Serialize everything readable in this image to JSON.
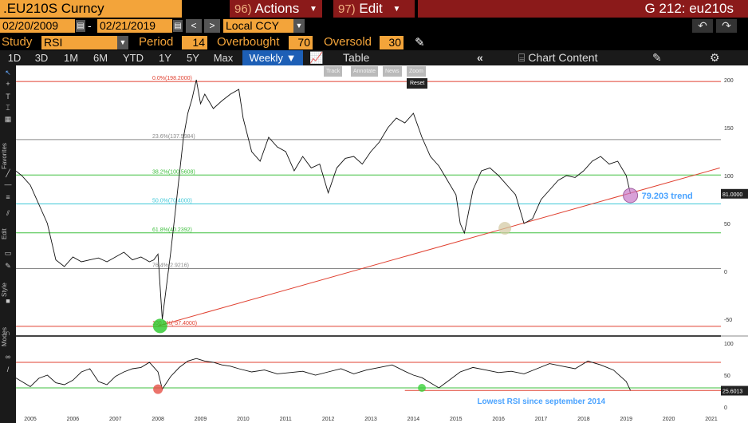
{
  "header": {
    "ticker": ".EU210S Curncy",
    "actions_num": "96)",
    "actions_label": "Actions",
    "edit_num": "97)",
    "edit_label": "Edit",
    "graph_title": "G 212: eu210s"
  },
  "range": {
    "start_date": "02/20/2009",
    "end_date": "02/21/2019",
    "currency": "Local CCY"
  },
  "study": {
    "study_label": "Study",
    "study_value": "RSI",
    "period_label": "Period",
    "period_value": "14",
    "overbought_label": "Overbought",
    "overbought_value": "70",
    "oversold_label": "Oversold",
    "oversold_value": "30"
  },
  "periods": [
    "1D",
    "3D",
    "1M",
    "6M",
    "YTD",
    "1Y",
    "5Y",
    "Max"
  ],
  "frequency": "Weekly",
  "toolbar": {
    "table_label": "Table",
    "chart_content_label": "Chart Content"
  },
  "overlay_tools": {
    "track": "Track",
    "annotate": "Annotate",
    "news": "News",
    "zoom": "Zoom",
    "reset": "Reset"
  },
  "sidebar_labels": {
    "favorites": "Favorites",
    "edit": "Edit",
    "style": "Style",
    "modes": "Modes"
  },
  "colors": {
    "accent": "#f3a43a",
    "header_red": "#8b1a1a",
    "active_blue": "#1d5fb6",
    "trend_red": "#e04030",
    "fib_green": "#3fbf3f",
    "fib_cyan": "#40c8d8"
  },
  "chart_data": [
    {
      "type": "line",
      "title": "",
      "y_axis_ticks": [
        200,
        150,
        100,
        50,
        0,
        -50
      ],
      "ylim": [
        -60,
        210
      ],
      "last_value": "81.0000",
      "x_ticks": [
        "2005",
        "2006",
        "2007",
        "2008",
        "2009",
        "2010",
        "2011",
        "2012",
        "2013",
        "2014",
        "2015",
        "2016",
        "2017",
        "2018",
        "2019",
        "2020",
        "2021"
      ],
      "series": [
        {
          "x": [
            2004.6,
            2004.8,
            2005.0,
            2005.2,
            2005.4,
            2005.6,
            2005.8,
            2006.0,
            2006.2,
            2006.4,
            2006.6,
            2006.8,
            2007.0,
            2007.2,
            2007.4,
            2007.6,
            2007.8,
            2007.9,
            2008.0,
            2008.1,
            2008.2,
            2008.3,
            2008.4,
            2008.5,
            2008.6,
            2008.7,
            2008.8,
            2008.9,
            2009.0,
            2009.1,
            2009.3,
            2009.5,
            2009.7,
            2009.9,
            2010.0,
            2010.2,
            2010.4,
            2010.6,
            2010.8,
            2011.0,
            2011.2,
            2011.4,
            2011.6,
            2011.8,
            2012.0,
            2012.2,
            2012.4,
            2012.6,
            2012.8,
            2013.0,
            2013.2,
            2013.4,
            2013.6,
            2013.8,
            2014.0,
            2014.2,
            2014.4,
            2014.6,
            2014.8,
            2015.0,
            2015.1,
            2015.2,
            2015.4,
            2015.6,
            2015.8,
            2016.0,
            2016.2,
            2016.4,
            2016.6,
            2016.8,
            2017.0,
            2017.2,
            2017.4,
            2017.6,
            2017.8,
            2018.0,
            2018.2,
            2018.4,
            2018.6,
            2018.8,
            2019.0,
            2019.1
          ],
          "y": [
            107,
            100,
            90,
            70,
            50,
            12,
            5,
            15,
            10,
            12,
            14,
            10,
            15,
            20,
            12,
            15,
            10,
            12,
            18,
            -50,
            -15,
            20,
            60,
            100,
            140,
            165,
            180,
            200,
            175,
            185,
            170,
            178,
            185,
            190,
            160,
            125,
            115,
            140,
            130,
            125,
            105,
            120,
            108,
            112,
            82,
            108,
            118,
            120,
            112,
            125,
            135,
            150,
            160,
            155,
            165,
            140,
            120,
            110,
            95,
            80,
            50,
            40,
            85,
            105,
            108,
            100,
            90,
            80,
            50,
            55,
            75,
            85,
            95,
            100,
            98,
            105,
            115,
            120,
            112,
            115,
            100,
            81
          ],
          "name": ""
        }
      ],
      "fib_levels": [
        {
          "label": "0.0%(198.2000)",
          "value": 198.2,
          "color": "#e04030"
        },
        {
          "label": "23.6%(137.5984)",
          "value": 137.6,
          "color": "#888888"
        },
        {
          "label": "38.2%(100.5608)",
          "value": 100.6,
          "color": "#3fbf3f"
        },
        {
          "label": "50.0%(70.4000)",
          "value": 70.4,
          "color": "#40c8d8"
        },
        {
          "label": "61.8%(40.2392)",
          "value": 40.2,
          "color": "#3fbf3f"
        },
        {
          "label": "76.4%(2.9216)",
          "value": 2.9,
          "color": "#888888"
        },
        {
          "label": "100.0%(-57.4000)",
          "value": -57.4,
          "color": "#e04030"
        }
      ],
      "trendline": {
        "from": [
          2008.0,
          -57
        ],
        "to": [
          2021.2,
          108
        ]
      },
      "annotation": "79.203 trend"
    },
    {
      "type": "line",
      "title": "",
      "y_axis_ticks": [
        100,
        50,
        0
      ],
      "ylim": [
        0,
        110
      ],
      "overbought": 70,
      "oversold": 30,
      "last_value": "25.6013",
      "series": [
        {
          "x": [
            2004.6,
            2004.8,
            2005.0,
            2005.2,
            2005.4,
            2005.6,
            2005.8,
            2006.0,
            2006.2,
            2006.4,
            2006.6,
            2006.8,
            2007.0,
            2007.2,
            2007.4,
            2007.6,
            2007.8,
            2008.0,
            2008.1,
            2008.3,
            2008.5,
            2008.7,
            2008.9,
            2009.1,
            2009.3,
            2009.5,
            2009.7,
            2009.9,
            2010.2,
            2010.5,
            2010.8,
            2011.1,
            2011.4,
            2011.7,
            2012.0,
            2012.3,
            2012.6,
            2012.9,
            2013.2,
            2013.5,
            2013.8,
            2014.0,
            2014.2,
            2014.4,
            2014.6,
            2014.8,
            2015.1,
            2015.4,
            2015.7,
            2016.0,
            2016.3,
            2016.6,
            2016.9,
            2017.2,
            2017.5,
            2017.8,
            2018.1,
            2018.4,
            2018.7,
            2019.0,
            2019.1
          ],
          "y": [
            48,
            40,
            32,
            45,
            50,
            38,
            35,
            42,
            55,
            60,
            40,
            35,
            48,
            55,
            60,
            62,
            70,
            55,
            28,
            48,
            62,
            72,
            76,
            72,
            70,
            66,
            64,
            60,
            55,
            58,
            52,
            54,
            56,
            50,
            55,
            60,
            52,
            58,
            62,
            66,
            56,
            50,
            46,
            38,
            30,
            40,
            55,
            62,
            58,
            54,
            56,
            52,
            60,
            68,
            64,
            60,
            72,
            66,
            58,
            40,
            26
          ],
          "name": ""
        }
      ],
      "annotation": "Lowest RSI since september 2014"
    }
  ]
}
